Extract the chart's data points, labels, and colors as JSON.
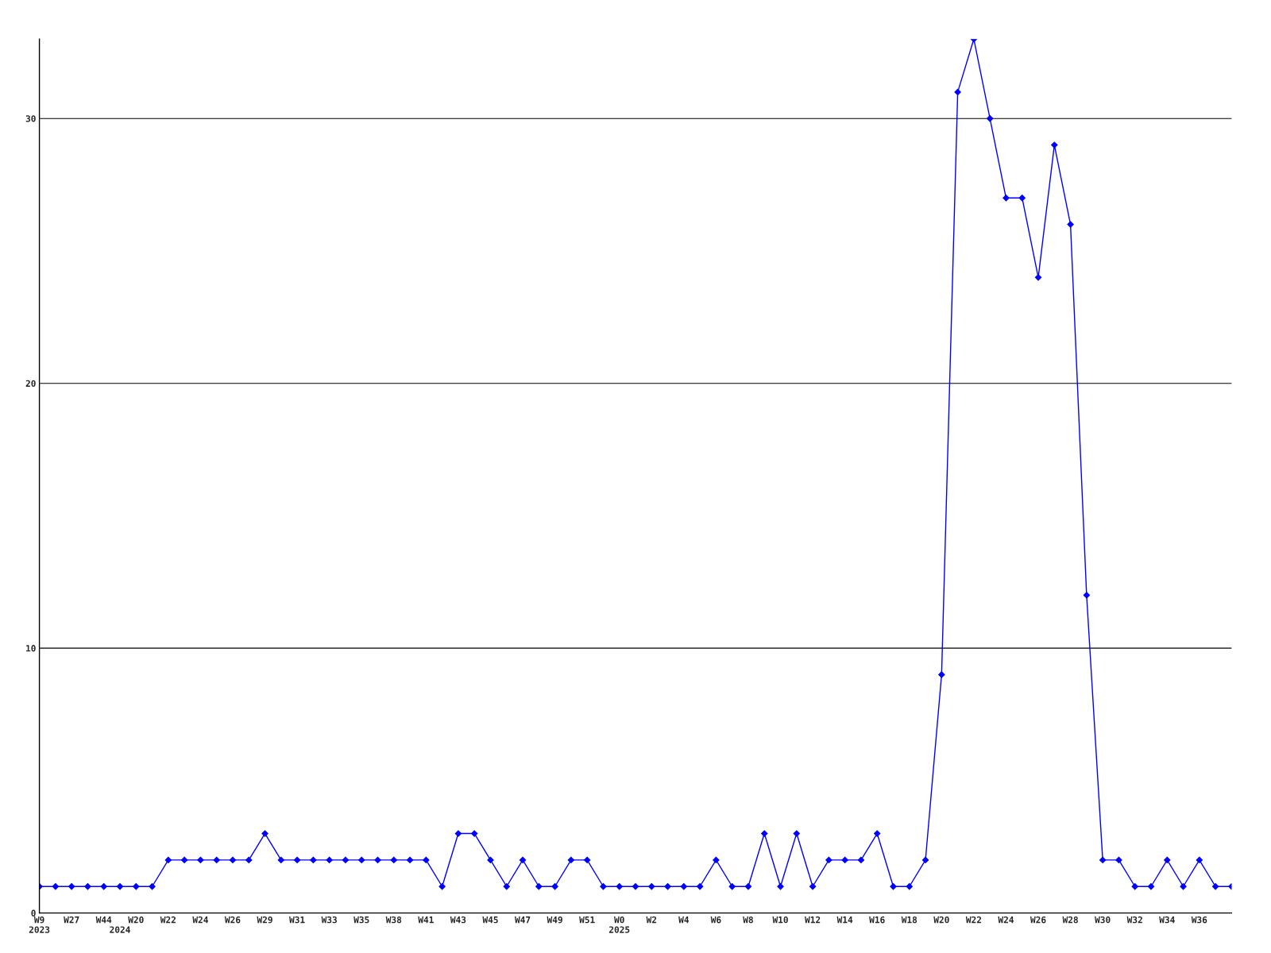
{
  "chart_data": {
    "type": "line",
    "categories": [
      "W9\n2023",
      null,
      "W27",
      null,
      "W44",
      "\n2024",
      "W20",
      null,
      "W22",
      null,
      "W24",
      null,
      "W26",
      null,
      "W29",
      null,
      "W31",
      null,
      "W33",
      null,
      "W35",
      null,
      "W38",
      null,
      "W41",
      null,
      "W43",
      null,
      "W45",
      null,
      "W47",
      null,
      "W49",
      null,
      "W51",
      null,
      "W0\n2025",
      null,
      "W2",
      null,
      "W4",
      null,
      "W6",
      null,
      "W8",
      null,
      "W10",
      null,
      "W12",
      null,
      "W14",
      null,
      "W16",
      null,
      "W18",
      null,
      "W20",
      null,
      "W22",
      null,
      "W24",
      null,
      "W26",
      null,
      "W28",
      null,
      "W30",
      null,
      "W32",
      null,
      "W34",
      null,
      "W36",
      null,
      null
    ],
    "series": [
      {
        "color": "#0000ff",
        "values": [
          1,
          1,
          1,
          1,
          1,
          1,
          1,
          1,
          2,
          2,
          2,
          2,
          2,
          2,
          3,
          2,
          2,
          2,
          2,
          2,
          2,
          2,
          2,
          2,
          2,
          1,
          3,
          3,
          2,
          1,
          2,
          1,
          1,
          2,
          2,
          1,
          1,
          1,
          1,
          1,
          1,
          1,
          2,
          1,
          1,
          3,
          1,
          3,
          1,
          2,
          2,
          2,
          3,
          1,
          1,
          2,
          9,
          31,
          33,
          30,
          27,
          27,
          24,
          29,
          26,
          12,
          2,
          2,
          1,
          1,
          2,
          1,
          2,
          1,
          1
        ]
      }
    ],
    "ylim": [
      0,
      33
    ],
    "yticks": [
      0,
      10,
      20,
      30
    ],
    "grid": "y",
    "marker": "diamond",
    "line_style": "solid",
    "legend": false
  }
}
